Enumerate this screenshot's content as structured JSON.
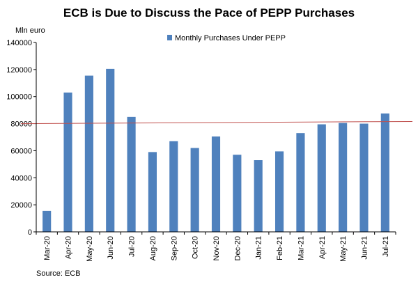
{
  "chart_data": {
    "type": "bar",
    "title": "ECB is Due to Discuss the Pace of PEPP Purchases",
    "ylabel": "Mln euro",
    "xlabel": "",
    "ylim": [
      0,
      140000
    ],
    "yticks": [
      0,
      20000,
      40000,
      60000,
      80000,
      100000,
      120000,
      140000
    ],
    "ytick_labels": [
      "0",
      "20000",
      "40000",
      "60000",
      "80000",
      "100000",
      "120000",
      "140000"
    ],
    "categories": [
      "Mar-20",
      "Apr-20",
      "May-20",
      "Jun-20",
      "Jul-20",
      "Aug-20",
      "Sep-20",
      "Oct-20",
      "Nov-20",
      "Dec-20",
      "Jan-21",
      "Feb-21",
      "Mar-21",
      "Apr-21",
      "May-21",
      "Jun-21",
      "Jul-21"
    ],
    "series": [
      {
        "name": "Monthly Purchases Under PEPP",
        "color": "#4f81bd",
        "values": [
          15500,
          103000,
          115500,
          120500,
          85000,
          59000,
          67000,
          62000,
          70500,
          57000,
          53000,
          59500,
          73000,
          79500,
          80500,
          80000,
          87500
        ]
      }
    ],
    "reference_line": {
      "color": "#c0504d",
      "start_value": 80000,
      "end_value": 81600
    },
    "legend_position": "top-center",
    "grid": false,
    "source": "Source: ECB"
  }
}
